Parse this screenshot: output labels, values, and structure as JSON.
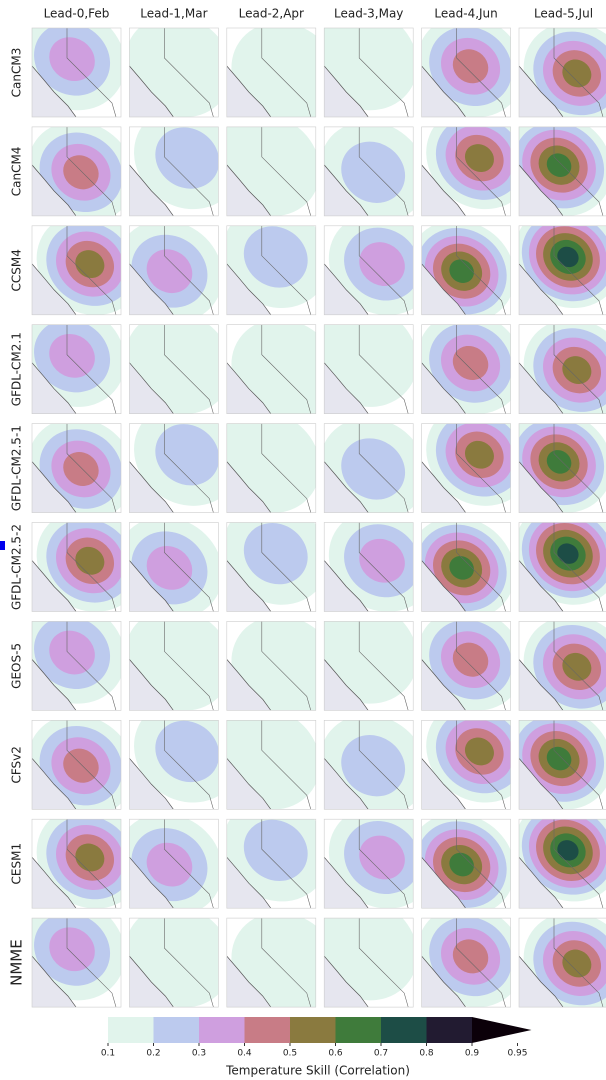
{
  "columns": [
    "Lead-0,Feb",
    "Lead-1,Mar",
    "Lead-2,Apr",
    "Lead-3,May",
    "Lead-4,Jun",
    "Lead-5,Jul"
  ],
  "rows": [
    "CanCM3",
    "CanCM4",
    "CCSM4",
    "GFDL-CM2.1",
    "GFDL-CM2.5-1",
    "GFDL-CM2.5-2",
    "GEOS-5",
    "CFSv2",
    "CESM1",
    "NMME"
  ],
  "colorbar": {
    "label": "Temperature Skill (Correlation)",
    "ticks": [
      0.1,
      0.2,
      0.3,
      0.4,
      0.5,
      0.6,
      0.7,
      0.8,
      0.9,
      0.95
    ],
    "colors": [
      "#e1f4ec",
      "#bccaee",
      "#cf9fdf",
      "#c87c86",
      "#8a7a3f",
      "#3f7b3b",
      "#1d4d46",
      "#221b31",
      "#0b0009"
    ]
  }
}
